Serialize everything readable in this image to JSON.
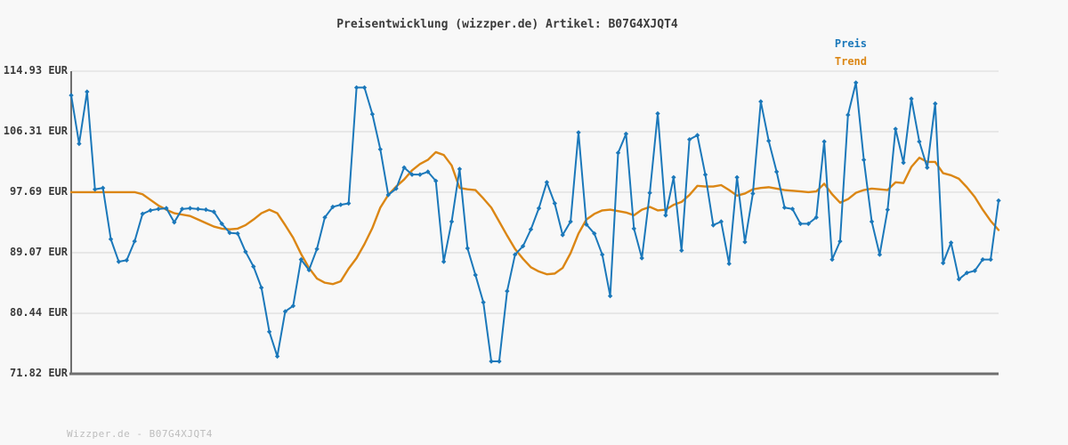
{
  "title": "Preisentwicklung (wizzper.de) Artikel: B07G4XJQT4",
  "footer": {
    "text": "Wizzper.de - B07G4XJQT4"
  },
  "colors": {
    "background": "#f8f8f8",
    "grid": "#e4e4e4",
    "axis": "#6f6f6f",
    "text": "#3a3a3a",
    "price": "#1b78ba",
    "trend": "#db8614",
    "footer_text": "#bdbdbd"
  },
  "chart_data": {
    "type": "line",
    "title": "Preisentwicklung (wizzper.de) Artikel: B07G4XJQT4",
    "xlabel": "",
    "ylabel": "EUR",
    "x_axis": "time, unlabeled (118 samples)",
    "ylim": [
      71.82,
      114.93
    ],
    "y_ticks": [
      114.93,
      106.31,
      97.69,
      89.07,
      80.44,
      71.82
    ],
    "y_tick_labels": [
      "114.93 EUR",
      "106.31 EUR",
      "97.69 EUR",
      "89.07 EUR",
      "80.44 EUR",
      "71.82 EUR"
    ],
    "grid": true,
    "legend_position": "top-right",
    "series": [
      {
        "name": "Preis",
        "color": "#1b78ba",
        "marker": "diamond",
        "values": [
          111.5,
          104.6,
          112.0,
          98.1,
          98.3,
          91.0,
          87.8,
          88.0,
          90.7,
          94.6,
          95.1,
          95.3,
          95.4,
          93.4,
          95.3,
          95.4,
          95.3,
          95.2,
          94.9,
          93.2,
          91.9,
          91.8,
          89.2,
          87.1,
          84.1,
          77.8,
          74.3,
          80.7,
          81.5,
          88.1,
          86.6,
          89.6,
          94.1,
          95.6,
          95.9,
          96.1,
          112.6,
          112.6,
          108.8,
          103.8,
          97.3,
          98.2,
          101.2,
          100.2,
          100.2,
          100.6,
          99.3,
          87.8,
          93.5,
          101.0,
          89.7,
          85.9,
          82.0,
          73.6,
          73.6,
          83.6,
          88.8,
          90.0,
          92.4,
          95.4,
          99.1,
          96.1,
          91.6,
          93.5,
          106.2,
          93.1,
          91.8,
          88.8,
          82.9,
          103.3,
          106.0,
          92.5,
          88.3,
          97.6,
          108.9,
          94.4,
          99.8,
          89.4,
          105.2,
          105.8,
          100.2,
          93.0,
          93.5,
          87.5,
          99.8,
          90.6,
          97.5,
          110.6,
          105.0,
          100.6,
          95.5,
          95.3,
          93.2,
          93.2,
          94.1,
          104.9,
          88.1,
          90.7,
          108.7,
          113.3,
          102.3,
          93.5,
          88.8,
          95.2,
          106.7,
          101.9,
          111.0,
          104.9,
          101.2,
          110.3,
          87.6,
          90.5,
          85.3,
          86.2,
          86.5,
          88.1,
          88.1,
          96.5
        ]
      },
      {
        "name": "Trend",
        "color": "#db8614",
        "marker": "none",
        "values": [
          97.7,
          97.7,
          97.7,
          97.7,
          97.7,
          97.7,
          97.7,
          97.7,
          97.7,
          97.4,
          96.6,
          95.8,
          95.2,
          94.7,
          94.5,
          94.3,
          93.8,
          93.3,
          92.8,
          92.5,
          92.4,
          92.5,
          93.0,
          93.8,
          94.7,
          95.2,
          94.7,
          93.0,
          91.2,
          88.9,
          86.9,
          85.4,
          84.8,
          84.6,
          85.0,
          86.8,
          88.3,
          90.3,
          92.6,
          95.5,
          97.3,
          98.5,
          99.5,
          100.8,
          101.7,
          102.3,
          103.4,
          103.0,
          101.5,
          98.3,
          98.1,
          98.0,
          96.8,
          95.5,
          93.5,
          91.5,
          89.6,
          88.2,
          87.0,
          86.4,
          86.0,
          86.1,
          86.9,
          89.0,
          91.8,
          93.8,
          94.6,
          95.1,
          95.2,
          95.0,
          94.8,
          94.4,
          95.2,
          95.6,
          95.1,
          95.2,
          95.9,
          96.3,
          97.3,
          98.6,
          98.5,
          98.5,
          98.7,
          98.0,
          97.2,
          97.5,
          98.1,
          98.3,
          98.4,
          98.2,
          98.0,
          97.9,
          97.8,
          97.7,
          97.8,
          98.9,
          97.4,
          96.2,
          96.7,
          97.6,
          98.0,
          98.2,
          98.1,
          98.0,
          99.1,
          99.0,
          101.3,
          102.6,
          102.0,
          102.0,
          100.4,
          100.1,
          99.6,
          98.4,
          97.0,
          95.2,
          93.6,
          92.3
        ]
      }
    ]
  }
}
